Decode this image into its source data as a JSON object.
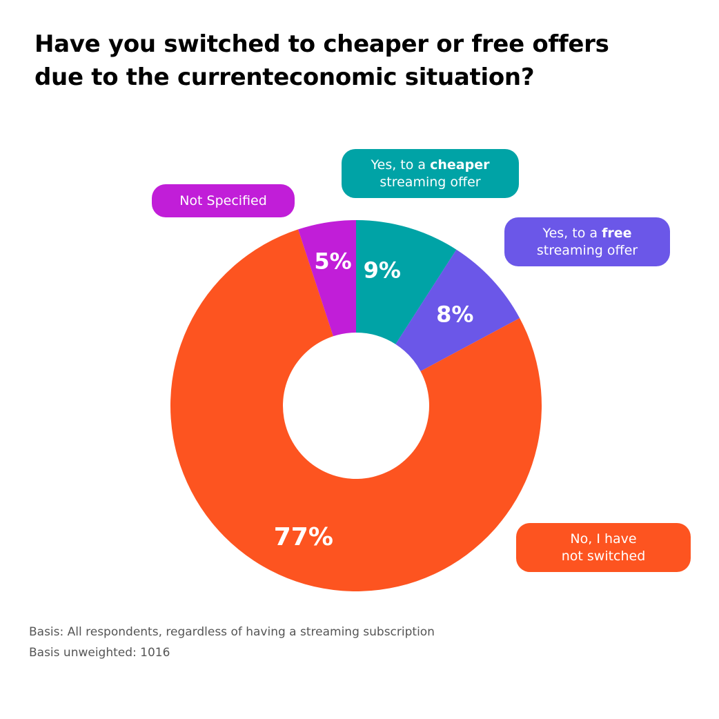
{
  "title_lines": [
    "Have you switched to cheaper or free offers",
    "due to the currenteconomic situation?"
  ],
  "colors": {
    "cheaper": "#00a3a6",
    "free": "#6b57e8",
    "not_switched": "#fd5420",
    "not_specified": "#c11ed8",
    "label_text": "#ffffff"
  },
  "legend": {
    "cheaper": {
      "line1_prefix": "Yes, to a ",
      "line1_bold": "cheaper",
      "line2": "streaming offer"
    },
    "free": {
      "line1_prefix": "Yes, to a ",
      "line1_bold": "free",
      "line2": "streaming offer"
    },
    "not_switched": {
      "line1": "No, I have",
      "line2": "not switched"
    },
    "not_specified": {
      "line1": "Not Specified"
    }
  },
  "chart_data": {
    "type": "pie",
    "donut": true,
    "title": "Have you switched to cheaper or free offers due to the currenteconomic situation?",
    "unit": "%",
    "slices": [
      {
        "label": "Yes, to a cheaper streaming offer",
        "value": 9,
        "display": "9%",
        "color": "#00a3a6"
      },
      {
        "label": "Yes, to a free streaming offer",
        "value": 8,
        "display": "8%",
        "color": "#6b57e8"
      },
      {
        "label": "No, I have not switched",
        "value": 77,
        "display": "77%",
        "color": "#fd5420"
      },
      {
        "label": "Not Specified",
        "value": 5,
        "display": "5%",
        "color": "#c11ed8"
      }
    ]
  },
  "footnotes": {
    "basis": "Basis: All respondents, regardless of having a streaming subscription",
    "unweighted": "Basis unweighted: 1016"
  }
}
